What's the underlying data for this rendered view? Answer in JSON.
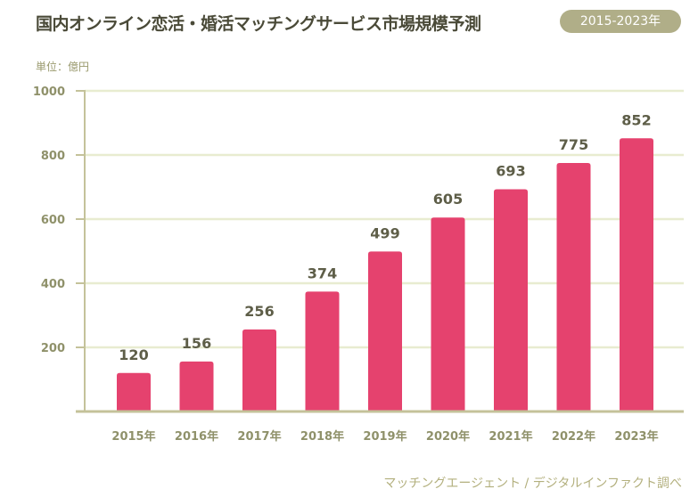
{
  "chart_data": {
    "type": "bar",
    "title": "国内オンライン恋活・婚活マッチングサービス市場規模予測",
    "period_badge": "2015-2023年",
    "unit_label": "単位：億円",
    "source": "マッチングエージェント / デジタルインファクト調べ",
    "categories": [
      "2015年",
      "2016年",
      "2017年",
      "2018年",
      "2019年",
      "2020年",
      "2021年",
      "2022年",
      "2023年"
    ],
    "values": [
      120,
      156,
      256,
      374,
      499,
      605,
      693,
      775,
      852
    ],
    "ylim": [
      0,
      1000
    ],
    "yticks": [
      200,
      400,
      600,
      800,
      1000
    ],
    "grid": true,
    "colors": {
      "bar": "#e5426e",
      "grid": "#e8ecd0",
      "axis": "#c4c29a",
      "text": "#8f916a",
      "value_text": "#5e5e48"
    }
  }
}
